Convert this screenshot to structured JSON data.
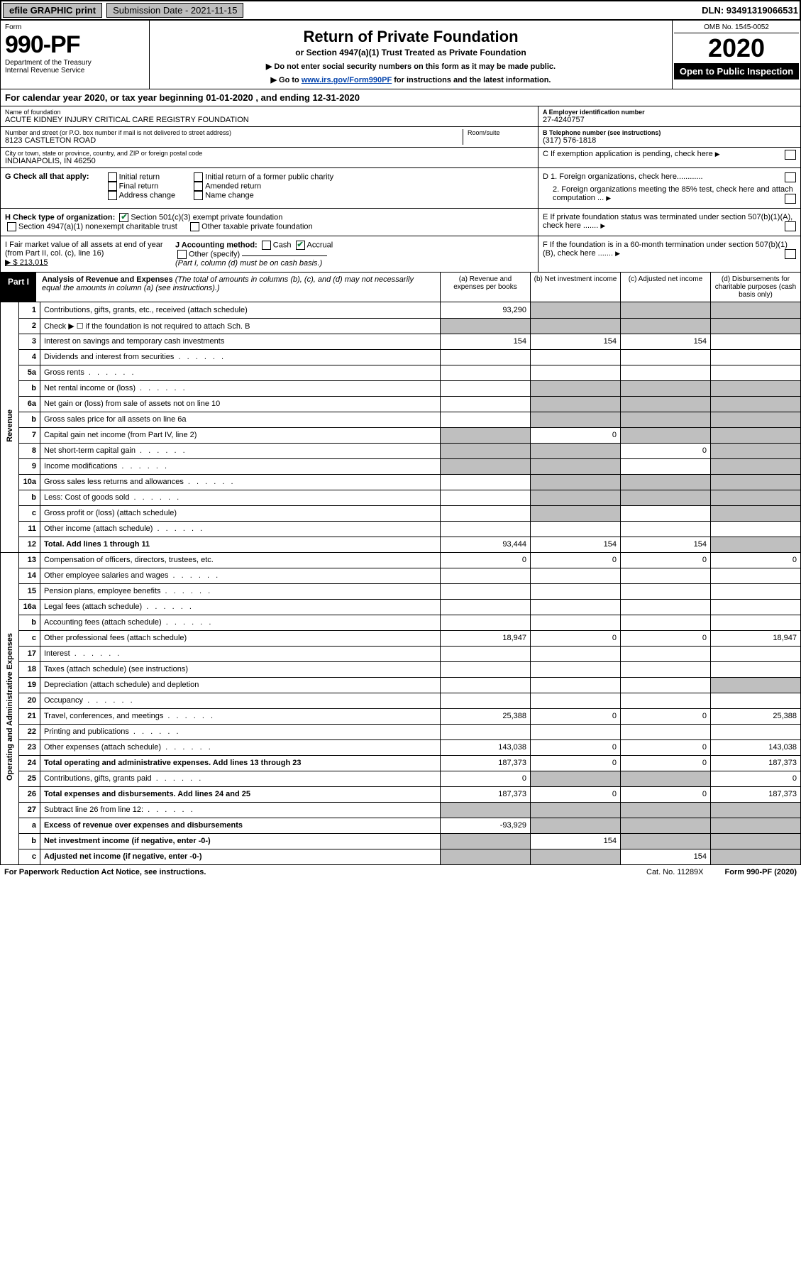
{
  "top": {
    "efile": "efile GRAPHIC print",
    "submission": "Submission Date - 2021-11-15",
    "dln": "DLN: 93491319066531"
  },
  "hdr": {
    "form_label": "Form",
    "form_no": "990-PF",
    "dept": "Department of the Treasury",
    "irs": "Internal Revenue Service",
    "title": "Return of Private Foundation",
    "subtitle": "or Section 4947(a)(1) Trust Treated as Private Foundation",
    "note1": "▶ Do not enter social security numbers on this form as it may be made public.",
    "note2_pre": "▶ Go to ",
    "note2_link": "www.irs.gov/Form990PF",
    "note2_post": " for instructions and the latest information.",
    "omb": "OMB No. 1545-0052",
    "year": "2020",
    "open": "Open to Public Inspection"
  },
  "cal": "For calendar year 2020, or tax year beginning 01-01-2020                     , and ending 12-31-2020",
  "ident": {
    "name_lbl": "Name of foundation",
    "name": "ACUTE KIDNEY INJURY CRITICAL CARE REGISTRY FOUNDATION",
    "ein_lbl": "A Employer identification number",
    "ein": "27-4240757",
    "addr_lbl": "Number and street (or P.O. box number if mail is not delivered to street address)",
    "addr": "8123 CASTLETON ROAD",
    "room_lbl": "Room/suite",
    "tel_lbl": "B Telephone number (see instructions)",
    "tel": "(317) 576-1818",
    "city_lbl": "City or town, state or province, country, and ZIP or foreign postal code",
    "city": "INDIANAPOLIS, IN  46250",
    "c_lbl": "C If exemption application is pending, check here"
  },
  "g": {
    "label": "G Check all that apply:",
    "opts": [
      "Initial return",
      "Final return",
      "Address change",
      "Initial return of a former public charity",
      "Amended return",
      "Name change"
    ],
    "d1": "D 1. Foreign organizations, check here............",
    "d2": "2. Foreign organizations meeting the 85% test, check here and attach computation ..."
  },
  "h": {
    "label": "H Check type of organization:",
    "o1": "Section 501(c)(3) exempt private foundation",
    "o2": "Section 4947(a)(1) nonexempt charitable trust",
    "o3": "Other taxable private foundation",
    "e": "E  If private foundation status was terminated under section 507(b)(1)(A), check here ......."
  },
  "i": {
    "label": "I Fair market value of all assets at end of year (from Part II, col. (c), line 16)",
    "val": "▶ $  213,015",
    "j": "J Accounting method:",
    "cash": "Cash",
    "accr": "Accrual",
    "other": "Other (specify)",
    "note": "(Part I, column (d) must be on cash basis.)",
    "f": "F  If the foundation is in a 60-month termination under section 507(b)(1)(B), check here ......."
  },
  "part1": {
    "tag": "Part I",
    "title": "Analysis of Revenue and Expenses",
    "title_note": " (The total of amounts in columns (b), (c), and (d) may not necessarily equal the amounts in column (a) (see instructions).)",
    "col_a": "(a)  Revenue and expenses per books",
    "col_b": "(b)  Net investment income",
    "col_c": "(c)  Adjusted net income",
    "col_d": "(d)  Disbursements for charitable purposes (cash basis only)"
  },
  "side": {
    "rev": "Revenue",
    "op": "Operating and Administrative Expenses"
  },
  "rows": {
    "r1": {
      "ln": "1",
      "d": "Contributions, gifts, grants, etc., received (attach schedule)",
      "a": "93,290",
      "b": "",
      "c": "",
      "dd": "",
      "ga": "",
      "gb": "1",
      "gc": "1",
      "gd": "1"
    },
    "r2": {
      "ln": "2",
      "d": "Check ▶ ☐ if the foundation is not required to attach Sch. B",
      "ga": "1",
      "gb": "1",
      "gc": "1",
      "gd": "1"
    },
    "r3": {
      "ln": "3",
      "d": "Interest on savings and temporary cash investments",
      "a": "154",
      "b": "154",
      "c": "154"
    },
    "r4": {
      "ln": "4",
      "d": "Dividends and interest from securities"
    },
    "r5a": {
      "ln": "5a",
      "d": "Gross rents"
    },
    "r5b": {
      "ln": "b",
      "d": "Net rental income or (loss)",
      "ga": "",
      "gb": "1",
      "gc": "1",
      "gd": "1"
    },
    "r6a": {
      "ln": "6a",
      "d": "Net gain or (loss) from sale of assets not on line 10",
      "gb": "1",
      "gc": "1",
      "gd": "1"
    },
    "r6b": {
      "ln": "b",
      "d": "Gross sales price for all assets on line 6a",
      "ga": "",
      "gb": "1",
      "gc": "1",
      "gd": "1"
    },
    "r7": {
      "ln": "7",
      "d": "Capital gain net income (from Part IV, line 2)",
      "b": "0",
      "ga": "1",
      "gc": "1",
      "gd": "1"
    },
    "r8": {
      "ln": "8",
      "d": "Net short-term capital gain",
      "c": "0",
      "ga": "1",
      "gb": "1",
      "gd": "1"
    },
    "r9": {
      "ln": "9",
      "d": "Income modifications",
      "ga": "1",
      "gb": "1",
      "gd": "1"
    },
    "r10a": {
      "ln": "10a",
      "d": "Gross sales less returns and allowances",
      "ga": "",
      "gb": "1",
      "gc": "1",
      "gd": "1"
    },
    "r10b": {
      "ln": "b",
      "d": "Less: Cost of goods sold",
      "ga": "",
      "gb": "1",
      "gc": "1",
      "gd": "1"
    },
    "r10c": {
      "ln": "c",
      "d": "Gross profit or (loss) (attach schedule)",
      "gb": "1",
      "gd": "1"
    },
    "r11": {
      "ln": "11",
      "d": "Other income (attach schedule)"
    },
    "r12": {
      "ln": "12",
      "d": "Total. Add lines 1 through 11",
      "a": "93,444",
      "b": "154",
      "c": "154",
      "gd": "1",
      "bold": "1"
    },
    "r13": {
      "ln": "13",
      "d": "Compensation of officers, directors, trustees, etc.",
      "a": "0",
      "b": "0",
      "c": "0",
      "dd": "0"
    },
    "r14": {
      "ln": "14",
      "d": "Other employee salaries and wages"
    },
    "r15": {
      "ln": "15",
      "d": "Pension plans, employee benefits"
    },
    "r16a": {
      "ln": "16a",
      "d": "Legal fees (attach schedule)"
    },
    "r16b": {
      "ln": "b",
      "d": "Accounting fees (attach schedule)"
    },
    "r16c": {
      "ln": "c",
      "d": "Other professional fees (attach schedule)",
      "a": "18,947",
      "b": "0",
      "c": "0",
      "dd": "18,947"
    },
    "r17": {
      "ln": "17",
      "d": "Interest"
    },
    "r18": {
      "ln": "18",
      "d": "Taxes (attach schedule) (see instructions)"
    },
    "r19": {
      "ln": "19",
      "d": "Depreciation (attach schedule) and depletion",
      "gd": "1"
    },
    "r20": {
      "ln": "20",
      "d": "Occupancy"
    },
    "r21": {
      "ln": "21",
      "d": "Travel, conferences, and meetings",
      "a": "25,388",
      "b": "0",
      "c": "0",
      "dd": "25,388"
    },
    "r22": {
      "ln": "22",
      "d": "Printing and publications"
    },
    "r23": {
      "ln": "23",
      "d": "Other expenses (attach schedule)",
      "a": "143,038",
      "b": "0",
      "c": "0",
      "dd": "143,038"
    },
    "r24": {
      "ln": "24",
      "d": "Total operating and administrative expenses. Add lines 13 through 23",
      "a": "187,373",
      "b": "0",
      "c": "0",
      "dd": "187,373",
      "bold": "1"
    },
    "r25": {
      "ln": "25",
      "d": "Contributions, gifts, grants paid",
      "a": "0",
      "dd": "0",
      "gb": "1",
      "gc": "1"
    },
    "r26": {
      "ln": "26",
      "d": "Total expenses and disbursements. Add lines 24 and 25",
      "a": "187,373",
      "b": "0",
      "c": "0",
      "dd": "187,373",
      "bold": "1"
    },
    "r27": {
      "ln": "27",
      "d": "Subtract line 26 from line 12:",
      "ga": "1",
      "gb": "1",
      "gc": "1",
      "gd": "1"
    },
    "r27a": {
      "ln": "a",
      "d": "Excess of revenue over expenses and disbursements",
      "a": "-93,929",
      "gb": "1",
      "gc": "1",
      "gd": "1",
      "bold": "1"
    },
    "r27b": {
      "ln": "b",
      "d": "Net investment income (if negative, enter -0-)",
      "b": "154",
      "ga": "1",
      "gc": "1",
      "gd": "1",
      "bold": "1"
    },
    "r27c": {
      "ln": "c",
      "d": "Adjusted net income (if negative, enter -0-)",
      "c": "154",
      "ga": "1",
      "gb": "1",
      "gd": "1",
      "bold": "1"
    }
  },
  "foot": {
    "pra": "For Paperwork Reduction Act Notice, see instructions.",
    "cat": "Cat. No. 11289X",
    "form": "Form 990-PF (2020)"
  }
}
